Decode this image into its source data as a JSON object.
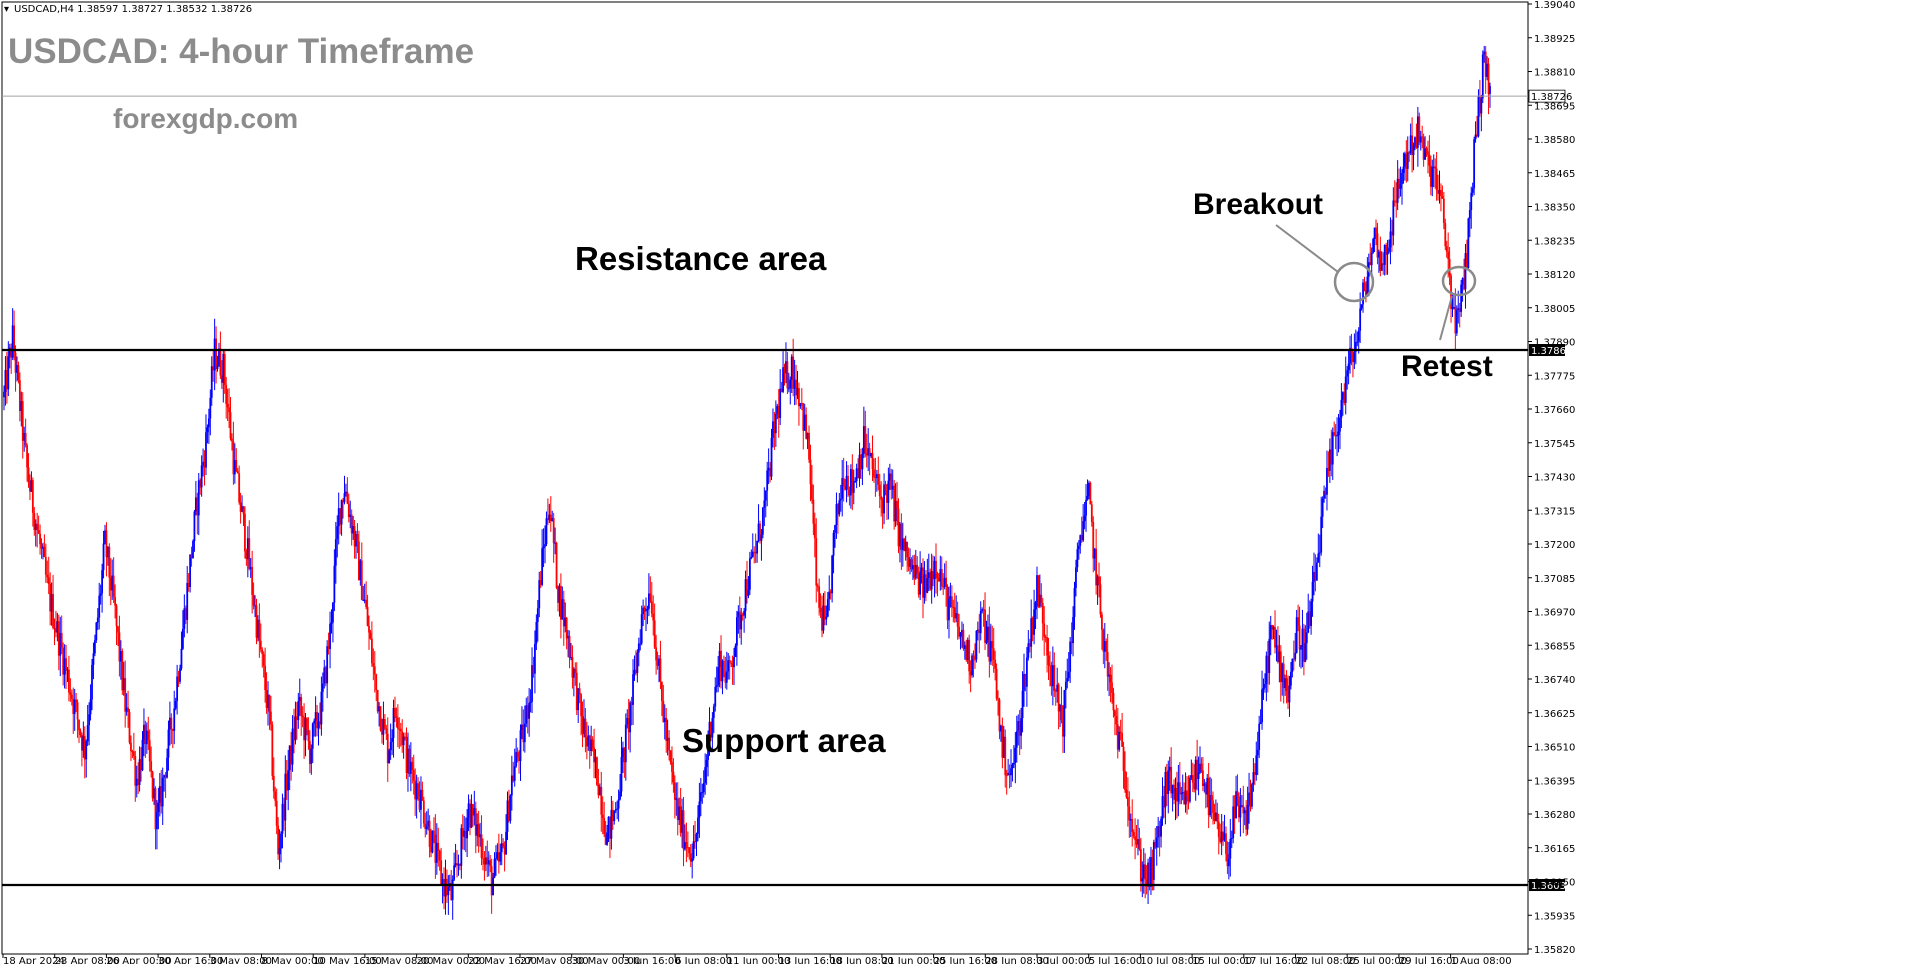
{
  "header": {
    "instrument_line": "USDCAD,H4  1.38597 1.38727 1.38532 1.38726",
    "title": "USDCAD: 4-hour Timeframe",
    "watermark": "forexgdp.com"
  },
  "annotations": {
    "resistance": "Resistance area",
    "support": "Support area",
    "breakout": "Breakout",
    "retest": "Retest"
  },
  "chart_data": {
    "type": "candlestick",
    "symbol": "USDCAD",
    "timeframe": "H4",
    "ohlc_header": {
      "open": 1.38597,
      "high": 1.38727,
      "low": 1.38532,
      "close": 1.38726
    },
    "ylim": [
      1.3582,
      1.3904
    ],
    "y_ticks": [
      "1.39040",
      "1.38925",
      "1.38810",
      "1.38695",
      "1.38580",
      "1.38465",
      "1.38350",
      "1.38235",
      "1.38120",
      "1.38005",
      "1.37890",
      "1.37775",
      "1.37660",
      "1.37545",
      "1.37430",
      "1.37315",
      "1.37200",
      "1.37085",
      "1.36970",
      "1.36855",
      "1.36740",
      "1.36625",
      "1.36510",
      "1.36395",
      "1.36280",
      "1.36165",
      "1.36050",
      "1.35935",
      "1.35820"
    ],
    "x_ticks": [
      "18 Apr 2024",
      "23 Apr 08:00",
      "26 Apr 00:00",
      "30 Apr 16:00",
      "3 May 08:00",
      "8 May 00:00",
      "10 May 16:00",
      "15 May 08:00",
      "20 May 00:00",
      "22 May 16:00",
      "27 May 08:00",
      "30 May 00:00",
      "3 Jun 16:00",
      "6 Jun 08:00",
      "11 Jun 00:00",
      "13 Jun 16:00",
      "18 Jun 08:00",
      "21 Jun 00:00",
      "25 Jun 16:00",
      "28 Jun 08:00",
      "3 Jul 00:00",
      "5 Jul 16:00",
      "10 Jul 08:00",
      "15 Jul 00:00",
      "17 Jul 16:00",
      "22 Jul 08:00",
      "25 Jul 00:00",
      "29 Jul 16:00",
      "1 Aug 08:00"
    ],
    "levels": {
      "current_price": {
        "value": 1.38726,
        "label": "1.38726"
      },
      "resistance": {
        "value": 1.37861,
        "label": "1.37861"
      },
      "support": {
        "value": 1.36038,
        "label": "1.36038"
      }
    },
    "price_path": [
      [
        0,
        1.377
      ],
      [
        6,
        1.379
      ],
      [
        16,
        1.3745
      ],
      [
        30,
        1.3705
      ],
      [
        44,
        1.3675
      ],
      [
        56,
        1.365
      ],
      [
        70,
        1.372
      ],
      [
        76,
        1.37
      ],
      [
        84,
        1.3665
      ],
      [
        92,
        1.364
      ],
      [
        98,
        1.3655
      ],
      [
        106,
        1.3625
      ],
      [
        112,
        1.3645
      ],
      [
        118,
        1.3665
      ],
      [
        126,
        1.37
      ],
      [
        134,
        1.3735
      ],
      [
        140,
        1.3755
      ],
      [
        146,
        1.3785
      ],
      [
        152,
        1.378
      ],
      [
        160,
        1.3745
      ],
      [
        168,
        1.372
      ],
      [
        176,
        1.369
      ],
      [
        184,
        1.366
      ],
      [
        190,
        1.3615
      ],
      [
        196,
        1.364
      ],
      [
        204,
        1.3665
      ],
      [
        212,
        1.365
      ],
      [
        220,
        1.3665
      ],
      [
        226,
        1.369
      ],
      [
        232,
        1.373
      ],
      [
        236,
        1.374
      ],
      [
        242,
        1.3725
      ],
      [
        250,
        1.37
      ],
      [
        258,
        1.367
      ],
      [
        266,
        1.365
      ],
      [
        272,
        1.3665
      ],
      [
        280,
        1.3645
      ],
      [
        288,
        1.3635
      ],
      [
        296,
        1.362
      ],
      [
        304,
        1.3605
      ],
      [
        310,
        1.36
      ],
      [
        316,
        1.3615
      ],
      [
        322,
        1.363
      ],
      [
        330,
        1.362
      ],
      [
        338,
        1.3605
      ],
      [
        346,
        1.3615
      ],
      [
        352,
        1.364
      ],
      [
        360,
        1.3655
      ],
      [
        366,
        1.3675
      ],
      [
        372,
        1.371
      ],
      [
        378,
        1.3735
      ],
      [
        384,
        1.3705
      ],
      [
        392,
        1.3685
      ],
      [
        400,
        1.366
      ],
      [
        406,
        1.365
      ],
      [
        412,
        1.364
      ],
      [
        418,
        1.362
      ],
      [
        424,
        1.363
      ],
      [
        430,
        1.365
      ],
      [
        436,
        1.367
      ],
      [
        442,
        1.3695
      ],
      [
        448,
        1.3705
      ],
      [
        454,
        1.3675
      ],
      [
        460,
        1.365
      ],
      [
        466,
        1.363
      ],
      [
        472,
        1.362
      ],
      [
        478,
        1.3615
      ],
      [
        484,
        1.3635
      ],
      [
        490,
        1.366
      ],
      [
        496,
        1.368
      ],
      [
        502,
        1.3675
      ],
      [
        508,
        1.369
      ],
      [
        514,
        1.3705
      ],
      [
        522,
        1.372
      ],
      [
        528,
        1.3735
      ],
      [
        534,
        1.376
      ],
      [
        540,
        1.3775
      ],
      [
        546,
        1.378
      ],
      [
        552,
        1.377
      ],
      [
        558,
        1.375
      ],
      [
        564,
        1.37
      ],
      [
        570,
        1.369
      ],
      [
        576,
        1.3725
      ],
      [
        582,
        1.3745
      ],
      [
        588,
        1.374
      ],
      [
        596,
        1.3755
      ],
      [
        602,
        1.3745
      ],
      [
        608,
        1.3735
      ],
      [
        614,
        1.374
      ],
      [
        622,
        1.372
      ],
      [
        630,
        1.371
      ],
      [
        638,
        1.3705
      ],
      [
        646,
        1.3715
      ],
      [
        654,
        1.37
      ],
      [
        662,
        1.369
      ],
      [
        670,
        1.368
      ],
      [
        678,
        1.3695
      ],
      [
        686,
        1.368
      ],
      [
        692,
        1.365
      ],
      [
        698,
        1.364
      ],
      [
        704,
        1.366
      ],
      [
        710,
        1.3685
      ],
      [
        716,
        1.3705
      ],
      [
        722,
        1.369
      ],
      [
        728,
        1.367
      ],
      [
        734,
        1.366
      ],
      [
        740,
        1.369
      ],
      [
        746,
        1.3725
      ],
      [
        752,
        1.3735
      ],
      [
        758,
        1.3705
      ],
      [
        764,
        1.368
      ],
      [
        770,
        1.366
      ],
      [
        776,
        1.3645
      ],
      [
        782,
        1.3625
      ],
      [
        788,
        1.361
      ],
      [
        794,
        1.3605
      ],
      [
        800,
        1.362
      ],
      [
        806,
        1.364
      ],
      [
        812,
        1.3635
      ],
      [
        818,
        1.363
      ],
      [
        824,
        1.364
      ],
      [
        830,
        1.3645
      ],
      [
        836,
        1.363
      ],
      [
        842,
        1.362
      ],
      [
        848,
        1.3615
      ],
      [
        854,
        1.363
      ],
      [
        860,
        1.3625
      ],
      [
        866,
        1.364
      ],
      [
        872,
        1.3665
      ],
      [
        878,
        1.369
      ],
      [
        884,
        1.368
      ],
      [
        890,
        1.367
      ],
      [
        896,
        1.369
      ],
      [
        902,
        1.3685
      ],
      [
        908,
        1.3705
      ],
      [
        914,
        1.373
      ],
      [
        920,
        1.375
      ],
      [
        926,
        1.3765
      ],
      [
        932,
        1.378
      ],
      [
        938,
        1.379
      ],
      [
        944,
        1.381
      ],
      [
        950,
        1.3825
      ],
      [
        956,
        1.3815
      ],
      [
        962,
        1.383
      ],
      [
        968,
        1.3845
      ],
      [
        974,
        1.3855
      ],
      [
        980,
        1.386
      ],
      [
        986,
        1.385
      ],
      [
        992,
        1.3845
      ],
      [
        998,
        1.383
      ],
      [
        1004,
        1.38
      ],
      [
        1008,
        1.3795
      ],
      [
        1014,
        1.382
      ],
      [
        1020,
        1.386
      ],
      [
        1026,
        1.3885
      ],
      [
        1030,
        1.3875
      ]
    ]
  }
}
